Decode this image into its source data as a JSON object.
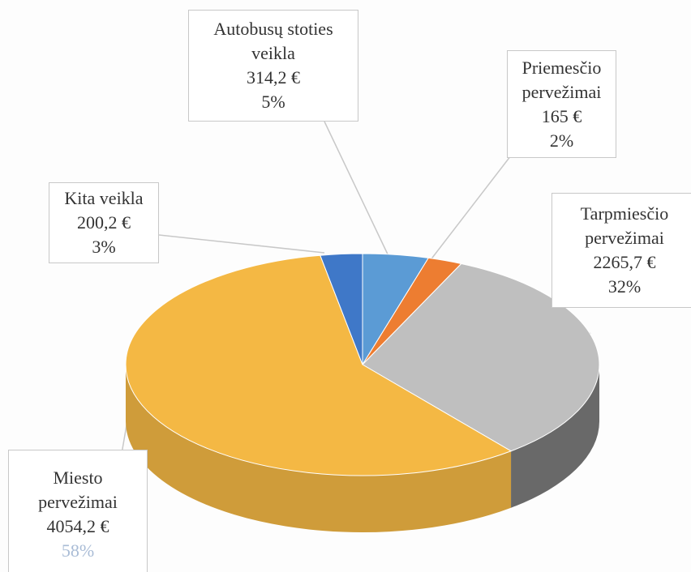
{
  "chart_data": {
    "type": "pie3d",
    "categories": [
      "Autobusų stoties veikla",
      "Priemesčio pervežimai",
      "Tarpmiesčio pervežimai",
      "Miesto pervežimai",
      "Kita veikla"
    ],
    "values": [
      314.2,
      165,
      2265.7,
      4054.2,
      200.2
    ],
    "value_labels": [
      "314,2 €",
      "165 €",
      "2265,7 €",
      "4054,2 €",
      "200,2 €"
    ],
    "percent_labels": [
      "5%",
      "2%",
      "32%",
      "58%",
      "3%"
    ],
    "colors": [
      "#5b9bd5",
      "#ed7d31",
      "#bfbfbf",
      "#f4b844",
      "#3f78c8"
    ]
  }
}
